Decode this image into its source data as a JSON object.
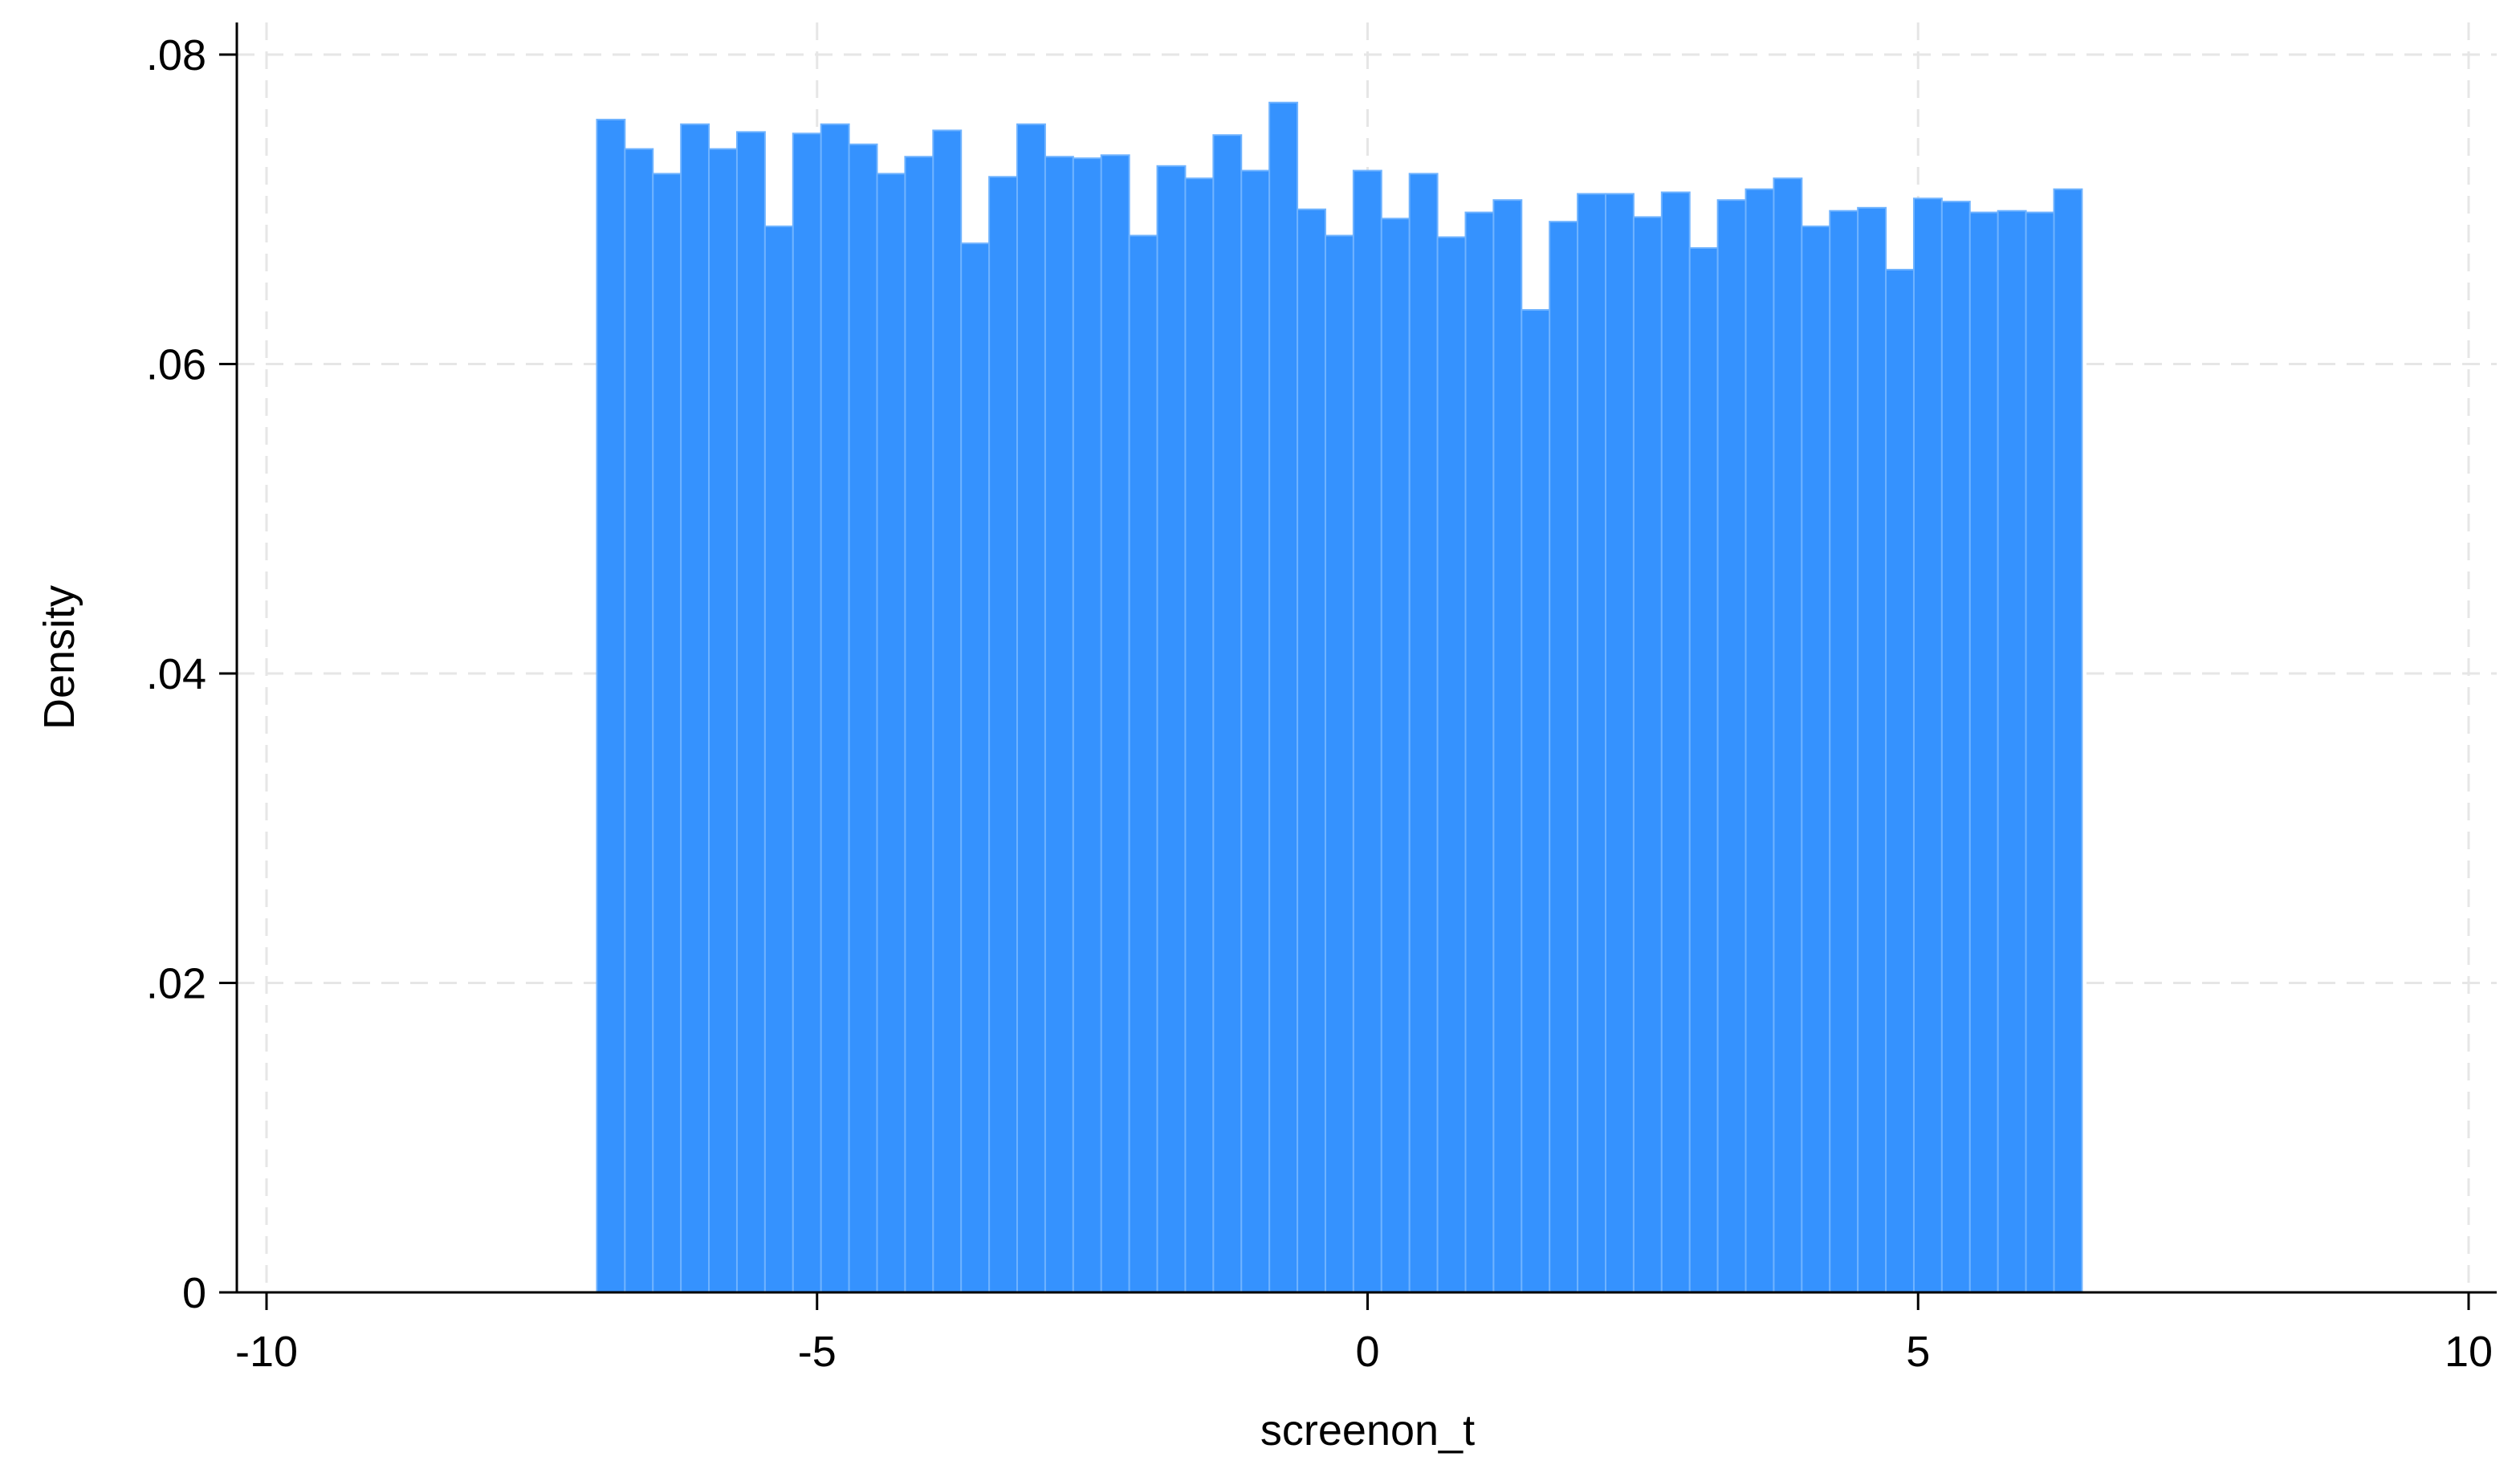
{
  "chart_data": {
    "type": "bar",
    "xlabel": "screenon_t",
    "ylabel": "Density",
    "xlim": [
      -10,
      10
    ],
    "ylim": [
      0,
      0.08
    ],
    "x_ticks": [
      -10,
      -5,
      0,
      5,
      10
    ],
    "x_tick_labels": [
      "-10",
      "-5",
      "0",
      "5",
      "10"
    ],
    "y_ticks": [
      0,
      0.02,
      0.04,
      0.06,
      0.08
    ],
    "y_tick_labels": [
      "0",
      ".02",
      ".04",
      ".06",
      ".08"
    ],
    "grid": true,
    "bin_start": -7,
    "bin_width": 0.2545,
    "values": [
      0.0758,
      0.0739,
      0.0723,
      0.0755,
      0.0739,
      0.075,
      0.0689,
      0.0749,
      0.0755,
      0.0742,
      0.0723,
      0.0734,
      0.0751,
      0.0678,
      0.0721,
      0.0755,
      0.0734,
      0.0733,
      0.0735,
      0.0683,
      0.0728,
      0.072,
      0.0748,
      0.0725,
      0.0769,
      0.07,
      0.0683,
      0.0725,
      0.0694,
      0.0723,
      0.0682,
      0.0698,
      0.0706,
      0.0635,
      0.0692,
      0.071,
      0.071,
      0.0695,
      0.0711,
      0.0675,
      0.0706,
      0.0713,
      0.072,
      0.0689,
      0.0699,
      0.0701,
      0.0661,
      0.0707,
      0.0705,
      0.0698,
      0.0699,
      0.0698,
      0.0713
    ],
    "bar_color": "#3592fe",
    "bar_edge_color": "#6fb3ff",
    "grid_color": "#e6e6e6"
  }
}
